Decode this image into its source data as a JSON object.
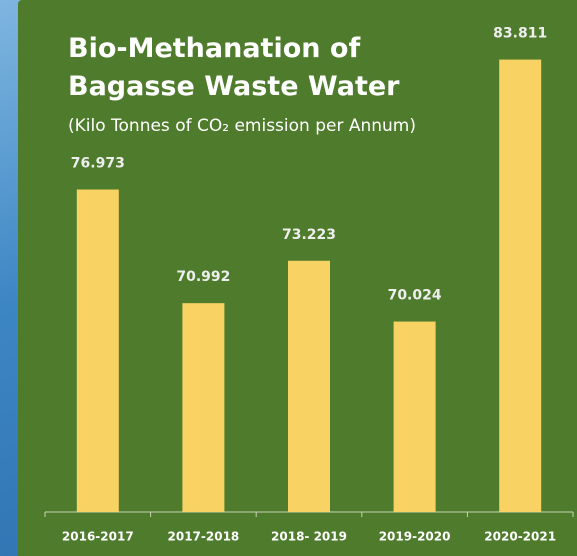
{
  "chart_data": {
    "type": "bar",
    "title": "Bio-Methanation of Bagasse Waste Water",
    "subtitle": "(Kilo Tonnes of CO₂ emission per Annum)",
    "categories": [
      "2016-2017",
      "2017-2018",
      "2018- 2019",
      "2019-2020",
      "2020-2021"
    ],
    "values": [
      76.973,
      70.992,
      73.223,
      70.024,
      83.811
    ],
    "color": "#f8d263",
    "ylim": [
      60,
      85
    ]
  }
}
